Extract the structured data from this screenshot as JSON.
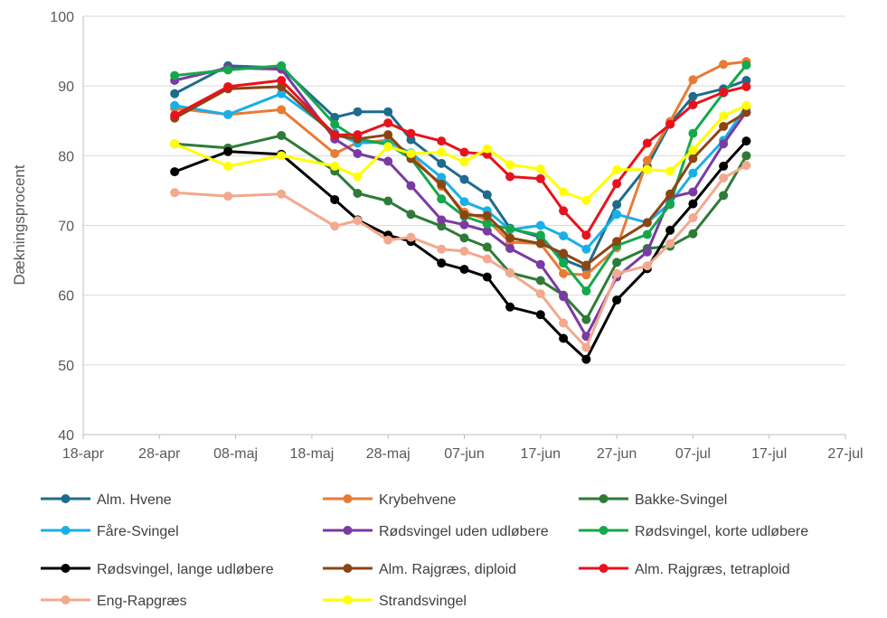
{
  "chart_data": {
    "type": "line",
    "title": "",
    "xlabel": "",
    "ylabel": "Dækningsprocent",
    "ylim": [
      40,
      100
    ],
    "yticks": [
      40,
      50,
      60,
      70,
      80,
      90,
      100
    ],
    "xlim": [
      "2024-04-18",
      "2024-07-27"
    ],
    "xticks": [
      {
        "date": "2024-04-18",
        "label": "18-apr"
      },
      {
        "date": "2024-04-28",
        "label": "28-apr"
      },
      {
        "date": "2024-05-08",
        "label": "08-maj"
      },
      {
        "date": "2024-05-18",
        "label": "18-maj"
      },
      {
        "date": "2024-05-28",
        "label": "28-maj"
      },
      {
        "date": "2024-06-07",
        "label": "07-jun"
      },
      {
        "date": "2024-06-17",
        "label": "17-jun"
      },
      {
        "date": "2024-06-27",
        "label": "27-jun"
      },
      {
        "date": "2024-07-07",
        "label": "07-jul"
      },
      {
        "date": "2024-07-17",
        "label": "17-jul"
      },
      {
        "date": "2024-07-27",
        "label": "27-jul"
      }
    ],
    "grid": "horizontal",
    "legend_position": "bottom",
    "x": [
      "2024-04-30",
      "2024-05-07",
      "2024-05-14",
      "2024-05-21",
      "2024-05-24",
      "2024-05-28",
      "2024-05-31",
      "2024-06-04",
      "2024-06-07",
      "2024-06-10",
      "2024-06-13",
      "2024-06-17",
      "2024-06-20",
      "2024-06-23",
      "2024-06-27",
      "2024-07-01",
      "2024-07-04",
      "2024-07-07",
      "2024-07-11",
      "2024-07-14",
      "2024-07-17"
    ],
    "series": [
      {
        "name": "Alm. Hvene",
        "color": "#1f6b8c",
        "values": [
          88.9,
          92.9,
          92.6,
          85.5,
          86.3,
          86.3,
          82.3,
          78.9,
          76.6,
          74.4,
          69.6,
          68.3,
          65.1,
          63.8,
          73.0,
          78.5,
          84.6,
          88.5,
          89.6,
          90.8,
          null
        ]
      },
      {
        "name": "Krybehvene",
        "color": "#e87b35",
        "values": [
          86.8,
          85.9,
          86.6,
          80.3,
          81.9,
          82.2,
          80.1,
          75.6,
          71.9,
          70.8,
          67.6,
          67.4,
          63.1,
          62.9,
          66.8,
          79.3,
          84.9,
          90.9,
          93.1,
          93.5,
          null
        ]
      },
      {
        "name": "Bakke-Svingel",
        "color": "#2e7b37",
        "values": [
          81.7,
          81.1,
          82.9,
          77.8,
          74.6,
          73.5,
          71.6,
          69.9,
          68.2,
          66.9,
          63.2,
          62.1,
          60.0,
          56.5,
          64.7,
          66.7,
          67.0,
          68.8,
          74.3,
          80.0,
          null
        ]
      },
      {
        "name": "Fåre-Svingel",
        "color": "#19b0e8",
        "values": [
          87.2,
          85.9,
          88.9,
          83.3,
          81.8,
          82.0,
          80.4,
          76.9,
          73.4,
          72.1,
          69.4,
          70.0,
          68.5,
          66.6,
          71.6,
          70.4,
          73.2,
          77.5,
          82.2,
          87.1,
          null
        ]
      },
      {
        "name": "Rødsvingel uden udløbere",
        "color": "#7a3aa3",
        "values": [
          90.8,
          92.6,
          92.4,
          82.4,
          80.3,
          79.2,
          75.7,
          70.8,
          70.1,
          69.2,
          66.7,
          64.4,
          59.8,
          54.1,
          62.6,
          66.2,
          74.0,
          74.8,
          81.7,
          86.3,
          null
        ]
      },
      {
        "name": "Rødsvingel, korte udløbere",
        "color": "#15a84b",
        "values": [
          91.5,
          92.3,
          92.9,
          84.5,
          82.4,
          81.6,
          79.6,
          73.8,
          71.3,
          70.2,
          69.5,
          68.6,
          64.6,
          60.6,
          67.1,
          68.7,
          73.0,
          83.2,
          89.0,
          93.0,
          null
        ]
      },
      {
        "name": "Rødsvingel, lange udløbere",
        "color": "#000000",
        "values": [
          77.7,
          80.6,
          80.2,
          73.7,
          70.8,
          68.6,
          67.7,
          64.6,
          63.7,
          62.6,
          58.3,
          57.2,
          53.8,
          50.8,
          59.3,
          63.8,
          69.3,
          73.1,
          78.5,
          82.1,
          null
        ]
      },
      {
        "name": "Alm. Rajgræs, diploid",
        "color": "#8b4513",
        "values": [
          85.4,
          89.6,
          89.9,
          82.9,
          82.4,
          83.0,
          79.6,
          75.9,
          71.5,
          71.4,
          68.2,
          67.4,
          66.0,
          64.3,
          67.7,
          70.4,
          74.5,
          79.6,
          84.2,
          86.2,
          null
        ]
      },
      {
        "name": "Alm. Rajgræs, tetraploid",
        "color": "#e8121c",
        "values": [
          85.8,
          89.9,
          90.8,
          83.0,
          83.0,
          84.7,
          83.2,
          82.1,
          80.5,
          80.2,
          77.0,
          76.7,
          72.1,
          68.6,
          76.0,
          81.8,
          84.5,
          87.3,
          89.1,
          89.9,
          null
        ]
      },
      {
        "name": "Eng-Rapgræs",
        "color": "#f2a98d",
        "values": [
          74.7,
          74.2,
          74.5,
          69.9,
          70.7,
          67.9,
          68.3,
          66.6,
          66.3,
          65.2,
          63.2,
          60.2,
          56.0,
          52.5,
          63.1,
          64.2,
          67.4,
          71.1,
          76.8,
          78.6,
          null
        ]
      },
      {
        "name": "Strandsvingel",
        "color": "#ffff00",
        "values": [
          81.7,
          78.5,
          80.0,
          78.5,
          77.0,
          81.3,
          80.3,
          80.5,
          79.1,
          81.0,
          78.7,
          78.1,
          74.8,
          73.6,
          78.0,
          78.0,
          77.8,
          80.8,
          85.7,
          87.2,
          null
        ]
      }
    ]
  }
}
